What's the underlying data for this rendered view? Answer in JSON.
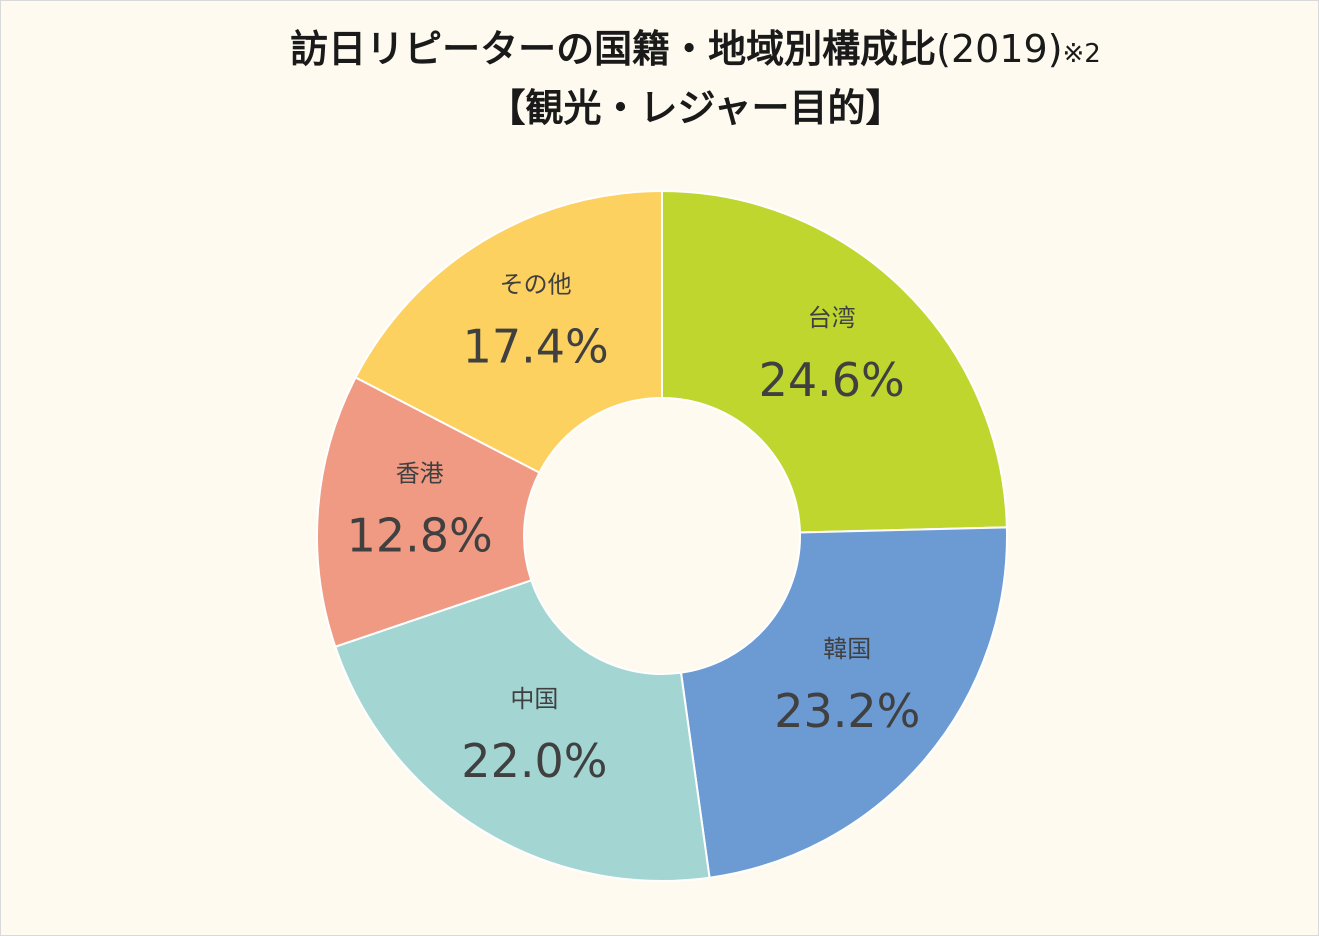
{
  "title": {
    "main": "訪日リピーターの国籍・地域別構成比",
    "year": "(2019)",
    "note": "※2",
    "sub": "【観光・レジャー目的】"
  },
  "chart_data": {
    "type": "pie",
    "variant": "donut",
    "categories": [
      "台湾",
      "韓国",
      "中国",
      "香港",
      "その他"
    ],
    "values": [
      24.6,
      23.2,
      22.0,
      12.8,
      17.4
    ],
    "value_labels": [
      "24.6%",
      "23.2%",
      "22.0%",
      "12.8%",
      "17.4%"
    ],
    "unit": "%",
    "colors": [
      "#bfd62e",
      "#6c9ad3",
      "#a3d6d3",
      "#f09a84",
      "#fdd15f"
    ],
    "start_angle_deg": 0,
    "direction": "clockwise",
    "legend": "none"
  }
}
